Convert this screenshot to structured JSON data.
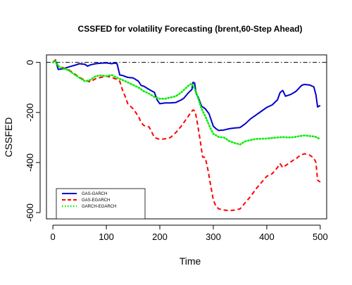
{
  "chart_data": {
    "type": "line",
    "title": "CSSFED for volatility Forecasting (brent,60-Step Ahead)",
    "xlabel": "Time",
    "ylabel": "CSSFED",
    "xlim": [
      -12,
      512
    ],
    "ylim": [
      -625,
      30
    ],
    "x_ticks": [
      0,
      100,
      200,
      300,
      400,
      500
    ],
    "y_ticks": [
      0,
      -200,
      -400,
      -600
    ],
    "reference_line": {
      "y": 0,
      "style": "dash-dot",
      "color": "#000000"
    },
    "grid": false,
    "legend": {
      "position": "bottom-left"
    },
    "series": [
      {
        "name": "GAS-GARCH",
        "color": "#0000cd",
        "style": "solid",
        "points": [
          [
            0,
            0
          ],
          [
            5,
            8
          ],
          [
            10,
            -28
          ],
          [
            20,
            -25
          ],
          [
            30,
            -18
          ],
          [
            40,
            -12
          ],
          [
            50,
            -5
          ],
          [
            60,
            -8
          ],
          [
            65,
            -15
          ],
          [
            70,
            -10
          ],
          [
            80,
            -5
          ],
          [
            90,
            -3
          ],
          [
            100,
            -2
          ],
          [
            110,
            -5
          ],
          [
            115,
            -3
          ],
          [
            120,
            -5
          ],
          [
            125,
            -50
          ],
          [
            130,
            -52
          ],
          [
            140,
            -60
          ],
          [
            150,
            -62
          ],
          [
            160,
            -75
          ],
          [
            165,
            -92
          ],
          [
            170,
            -95
          ],
          [
            180,
            -108
          ],
          [
            190,
            -120
          ],
          [
            195,
            -150
          ],
          [
            200,
            -165
          ],
          [
            210,
            -162
          ],
          [
            220,
            -162
          ],
          [
            230,
            -160
          ],
          [
            240,
            -150
          ],
          [
            245,
            -143
          ],
          [
            250,
            -130
          ],
          [
            255,
            -118
          ],
          [
            260,
            -108
          ],
          [
            262,
            -80
          ],
          [
            265,
            -82
          ],
          [
            268,
            -125
          ],
          [
            272,
            -140
          ],
          [
            278,
            -175
          ],
          [
            285,
            -185
          ],
          [
            292,
            -205
          ],
          [
            300,
            -255
          ],
          [
            305,
            -265
          ],
          [
            310,
            -272
          ],
          [
            320,
            -270
          ],
          [
            330,
            -265
          ],
          [
            340,
            -262
          ],
          [
            350,
            -260
          ],
          [
            360,
            -245
          ],
          [
            370,
            -225
          ],
          [
            380,
            -210
          ],
          [
            390,
            -195
          ],
          [
            400,
            -180
          ],
          [
            410,
            -170
          ],
          [
            420,
            -150
          ],
          [
            425,
            -120
          ],
          [
            430,
            -112
          ],
          [
            435,
            -135
          ],
          [
            445,
            -128
          ],
          [
            455,
            -115
          ],
          [
            465,
            -92
          ],
          [
            470,
            -88
          ],
          [
            480,
            -90
          ],
          [
            488,
            -98
          ],
          [
            492,
            -130
          ],
          [
            495,
            -178
          ],
          [
            500,
            -172
          ]
        ]
      },
      {
        "name": "GAS-EGARCH",
        "color": "#ff0000",
        "style": "dashed",
        "points": [
          [
            0,
            0
          ],
          [
            5,
            10
          ],
          [
            10,
            -15
          ],
          [
            20,
            -22
          ],
          [
            30,
            -30
          ],
          [
            40,
            -45
          ],
          [
            50,
            -60
          ],
          [
            60,
            -72
          ],
          [
            70,
            -78
          ],
          [
            80,
            -65
          ],
          [
            90,
            -60
          ],
          [
            100,
            -55
          ],
          [
            110,
            -60
          ],
          [
            120,
            -68
          ],
          [
            125,
            -75
          ],
          [
            130,
            -110
          ],
          [
            135,
            -135
          ],
          [
            140,
            -165
          ],
          [
            150,
            -185
          ],
          [
            155,
            -200
          ],
          [
            160,
            -215
          ],
          [
            165,
            -240
          ],
          [
            170,
            -252
          ],
          [
            180,
            -258
          ],
          [
            190,
            -300
          ],
          [
            200,
            -308
          ],
          [
            210,
            -305
          ],
          [
            220,
            -300
          ],
          [
            230,
            -280
          ],
          [
            240,
            -255
          ],
          [
            250,
            -225
          ],
          [
            258,
            -200
          ],
          [
            262,
            -190
          ],
          [
            266,
            -195
          ],
          [
            270,
            -240
          ],
          [
            275,
            -305
          ],
          [
            280,
            -378
          ],
          [
            285,
            -380
          ],
          [
            290,
            -430
          ],
          [
            295,
            -490
          ],
          [
            300,
            -550
          ],
          [
            305,
            -575
          ],
          [
            310,
            -585
          ],
          [
            320,
            -590
          ],
          [
            330,
            -592
          ],
          [
            340,
            -590
          ],
          [
            350,
            -585
          ],
          [
            360,
            -560
          ],
          [
            370,
            -535
          ],
          [
            380,
            -505
          ],
          [
            390,
            -480
          ],
          [
            400,
            -455
          ],
          [
            410,
            -445
          ],
          [
            420,
            -420
          ],
          [
            425,
            -405
          ],
          [
            430,
            -420
          ],
          [
            440,
            -405
          ],
          [
            450,
            -390
          ],
          [
            455,
            -385
          ],
          [
            460,
            -375
          ],
          [
            465,
            -370
          ],
          [
            470,
            -365
          ],
          [
            480,
            -370
          ],
          [
            488,
            -382
          ],
          [
            492,
            -400
          ],
          [
            495,
            -470
          ],
          [
            500,
            -478
          ]
        ]
      },
      {
        "name": "GARCH-EGARCH",
        "color": "#00ee00",
        "style": "dotted",
        "points": [
          [
            0,
            0
          ],
          [
            5,
            5
          ],
          [
            10,
            -15
          ],
          [
            20,
            -25
          ],
          [
            30,
            -32
          ],
          [
            40,
            -48
          ],
          [
            50,
            -62
          ],
          [
            60,
            -75
          ],
          [
            70,
            -70
          ],
          [
            80,
            -55
          ],
          [
            90,
            -52
          ],
          [
            100,
            -55
          ],
          [
            110,
            -50
          ],
          [
            120,
            -62
          ],
          [
            130,
            -70
          ],
          [
            140,
            -80
          ],
          [
            150,
            -90
          ],
          [
            160,
            -100
          ],
          [
            170,
            -115
          ],
          [
            180,
            -125
          ],
          [
            190,
            -138
          ],
          [
            200,
            -145
          ],
          [
            210,
            -145
          ],
          [
            220,
            -140
          ],
          [
            230,
            -135
          ],
          [
            240,
            -120
          ],
          [
            250,
            -100
          ],
          [
            255,
            -90
          ],
          [
            260,
            -85
          ],
          [
            264,
            -100
          ],
          [
            268,
            -120
          ],
          [
            272,
            -145
          ],
          [
            278,
            -185
          ],
          [
            285,
            -215
          ],
          [
            290,
            -240
          ],
          [
            295,
            -265
          ],
          [
            300,
            -285
          ],
          [
            310,
            -298
          ],
          [
            320,
            -300
          ],
          [
            330,
            -315
          ],
          [
            340,
            -322
          ],
          [
            350,
            -328
          ],
          [
            360,
            -315
          ],
          [
            370,
            -310
          ],
          [
            380,
            -306
          ],
          [
            390,
            -305
          ],
          [
            400,
            -304
          ],
          [
            410,
            -302
          ],
          [
            420,
            -300
          ],
          [
            430,
            -298
          ],
          [
            440,
            -300
          ],
          [
            450,
            -299
          ],
          [
            460,
            -295
          ],
          [
            470,
            -292
          ],
          [
            480,
            -294
          ],
          [
            490,
            -296
          ],
          [
            495,
            -302
          ],
          [
            500,
            -305
          ]
        ]
      }
    ]
  }
}
